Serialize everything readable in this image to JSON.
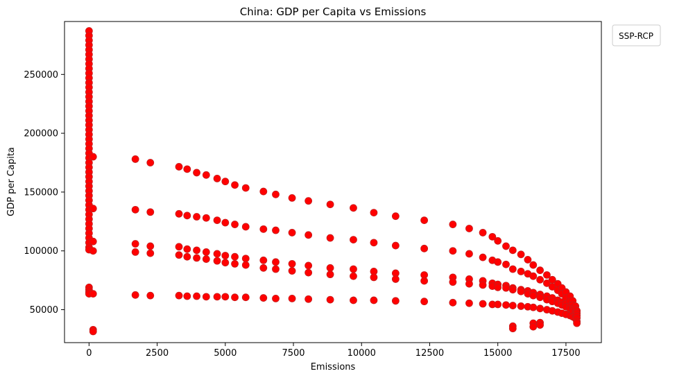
{
  "chart_data": {
    "type": "scatter",
    "title": "China: GDP per Capita vs Emissions",
    "xlabel": "Emissions",
    "ylabel": "GDP per Capita",
    "xlim": [
      -900,
      18800
    ],
    "ylim": [
      22000,
      295000
    ],
    "xticks": [
      0,
      2500,
      5000,
      7500,
      10000,
      12500,
      15000,
      17500
    ],
    "yticks": [
      50000,
      100000,
      150000,
      200000,
      250000
    ],
    "legend": {
      "title": "SSP-RCP",
      "placement": "outside-top-right"
    },
    "grid": false,
    "marker_color": "#ff0000",
    "marker_edge_color": "#c41e1e",
    "series": [
      {
        "points": [
          [
            0,
            287000
          ],
          [
            0,
            283000
          ],
          [
            0,
            279000
          ],
          [
            0,
            275000
          ],
          [
            0,
            271000
          ],
          [
            0,
            267000
          ],
          [
            0,
            263000
          ],
          [
            0,
            259000
          ],
          [
            0,
            255000
          ],
          [
            0,
            251000
          ],
          [
            0,
            247000
          ],
          [
            0,
            243000
          ],
          [
            0,
            239000
          ],
          [
            0,
            235000
          ],
          [
            0,
            231000
          ],
          [
            0,
            227000
          ],
          [
            0,
            223000
          ],
          [
            0,
            219000
          ],
          [
            0,
            215000
          ],
          [
            0,
            211000
          ],
          [
            0,
            207000
          ],
          [
            0,
            203000
          ],
          [
            0,
            199000
          ],
          [
            0,
            195000
          ],
          [
            0,
            191000
          ],
          [
            0,
            187000
          ],
          [
            0,
            183000
          ],
          [
            0,
            179000
          ],
          [
            0,
            175000
          ],
          [
            0,
            171000
          ],
          [
            0,
            167000
          ],
          [
            0,
            163000
          ],
          [
            0,
            159000
          ],
          [
            0,
            155000
          ],
          [
            0,
            151000
          ],
          [
            0,
            147000
          ],
          [
            0,
            143000
          ],
          [
            0,
            139000
          ],
          [
            0,
            135000
          ],
          [
            0,
            131000
          ],
          [
            0,
            127000
          ],
          [
            0,
            123000
          ],
          [
            0,
            119000
          ],
          [
            0,
            115000
          ],
          [
            0,
            111000
          ],
          [
            0,
            107000
          ],
          [
            0,
            103000
          ],
          [
            0,
            101000
          ],
          [
            0,
            69000
          ],
          [
            0,
            67000
          ],
          [
            0,
            65000
          ],
          [
            0,
            63500
          ],
          [
            150,
            180000
          ],
          [
            150,
            136000
          ],
          [
            150,
            108000
          ],
          [
            150,
            100000
          ],
          [
            150,
            63500
          ],
          [
            150,
            33000
          ],
          [
            150,
            31500
          ],
          [
            1700,
            178000
          ],
          [
            1700,
            135000
          ],
          [
            1700,
            106000
          ],
          [
            1700,
            99000
          ],
          [
            1700,
            62500
          ],
          [
            2250,
            175000
          ],
          [
            2250,
            133000
          ],
          [
            2250,
            104000
          ],
          [
            2250,
            98000
          ],
          [
            2250,
            62000
          ],
          [
            3300,
            171500
          ],
          [
            3300,
            131500
          ],
          [
            3300,
            103500
          ],
          [
            3300,
            96500
          ],
          [
            3300,
            62000
          ],
          [
            3600,
            169500
          ],
          [
            3600,
            130000
          ],
          [
            3600,
            101500
          ],
          [
            3600,
            95000
          ],
          [
            3600,
            61500
          ],
          [
            3950,
            166500
          ],
          [
            3950,
            129000
          ],
          [
            3950,
            100500
          ],
          [
            3950,
            94000
          ],
          [
            3950,
            61500
          ],
          [
            4300,
            164500
          ],
          [
            4300,
            128000
          ],
          [
            4300,
            99000
          ],
          [
            4300,
            93000
          ],
          [
            4300,
            61000
          ],
          [
            4700,
            161500
          ],
          [
            4700,
            126000
          ],
          [
            4700,
            97500
          ],
          [
            4700,
            91500
          ],
          [
            4700,
            61000
          ],
          [
            5000,
            159000
          ],
          [
            5000,
            124000
          ],
          [
            5000,
            96000
          ],
          [
            5000,
            90000
          ],
          [
            5000,
            61000
          ],
          [
            5350,
            156000
          ],
          [
            5350,
            122500
          ],
          [
            5350,
            95000
          ],
          [
            5350,
            89000
          ],
          [
            5350,
            60500
          ],
          [
            5750,
            153500
          ],
          [
            5750,
            120500
          ],
          [
            5750,
            93500
          ],
          [
            5750,
            88000
          ],
          [
            5750,
            60500
          ],
          [
            6400,
            150500
          ],
          [
            6400,
            118500
          ],
          [
            6400,
            92000
          ],
          [
            6400,
            85500
          ],
          [
            6400,
            60000
          ],
          [
            6850,
            148000
          ],
          [
            6850,
            117500
          ],
          [
            6850,
            90500
          ],
          [
            6850,
            84500
          ],
          [
            6850,
            59500
          ],
          [
            7450,
            145000
          ],
          [
            7450,
            115500
          ],
          [
            7450,
            89000
          ],
          [
            7450,
            83000
          ],
          [
            7450,
            59500
          ],
          [
            8050,
            142500
          ],
          [
            8050,
            113500
          ],
          [
            8050,
            87500
          ],
          [
            8050,
            81500
          ],
          [
            8050,
            59000
          ],
          [
            8850,
            139500
          ],
          [
            8850,
            111000
          ],
          [
            8850,
            85500
          ],
          [
            8850,
            80000
          ],
          [
            8850,
            58500
          ],
          [
            9700,
            136500
          ],
          [
            9700,
            109500
          ],
          [
            9700,
            84500
          ],
          [
            9700,
            78500
          ],
          [
            9700,
            58000
          ],
          [
            10450,
            132500
          ],
          [
            10450,
            107000
          ],
          [
            10450,
            82500
          ],
          [
            10450,
            77500
          ],
          [
            10450,
            58000
          ],
          [
            11250,
            129500
          ],
          [
            11250,
            104500
          ],
          [
            11250,
            81000
          ],
          [
            11250,
            76000
          ],
          [
            11250,
            57500
          ],
          [
            12300,
            126000
          ],
          [
            12300,
            102000
          ],
          [
            12300,
            79500
          ],
          [
            12300,
            74500
          ],
          [
            12300,
            57000
          ],
          [
            13350,
            122500
          ],
          [
            13350,
            100000
          ],
          [
            13350,
            77500
          ],
          [
            13350,
            73500
          ],
          [
            13350,
            56000
          ],
          [
            13950,
            119000
          ],
          [
            13950,
            97500
          ],
          [
            13950,
            76000
          ],
          [
            13950,
            72000
          ],
          [
            13950,
            55500
          ],
          [
            14450,
            115500
          ],
          [
            14450,
            94500
          ],
          [
            14450,
            74500
          ],
          [
            14450,
            71000
          ],
          [
            14450,
            55000
          ],
          [
            14800,
            112000
          ],
          [
            14800,
            92000
          ],
          [
            14800,
            72500
          ],
          [
            14800,
            70000
          ],
          [
            14800,
            54500
          ],
          [
            15000,
            108500
          ],
          [
            15000,
            90500
          ],
          [
            15000,
            71500
          ],
          [
            15000,
            69000
          ],
          [
            15000,
            54500
          ],
          [
            15300,
            104000
          ],
          [
            15300,
            88500
          ],
          [
            15300,
            70500
          ],
          [
            15300,
            68500
          ],
          [
            15300,
            54000
          ],
          [
            15550,
            100500
          ],
          [
            15550,
            84500
          ],
          [
            15550,
            68500
          ],
          [
            15550,
            67000
          ],
          [
            15550,
            53500
          ],
          [
            15550,
            36000
          ],
          [
            15550,
            34000
          ],
          [
            15850,
            97000
          ],
          [
            15850,
            82500
          ],
          [
            15850,
            67000
          ],
          [
            15850,
            65500
          ],
          [
            15850,
            53000
          ],
          [
            16100,
            92500
          ],
          [
            16100,
            80500
          ],
          [
            16100,
            66000
          ],
          [
            16100,
            63500
          ],
          [
            16100,
            52500
          ],
          [
            16300,
            88000
          ],
          [
            16300,
            78500
          ],
          [
            16300,
            64500
          ],
          [
            16300,
            62000
          ],
          [
            16300,
            52000
          ],
          [
            16300,
            38500
          ],
          [
            16300,
            35500
          ],
          [
            16550,
            83500
          ],
          [
            16550,
            75500
          ],
          [
            16550,
            63000
          ],
          [
            16550,
            60500
          ],
          [
            16550,
            51000
          ],
          [
            16550,
            39000
          ],
          [
            16550,
            37000
          ],
          [
            16800,
            79500
          ],
          [
            16800,
            72500
          ],
          [
            16800,
            61500
          ],
          [
            16800,
            58500
          ],
          [
            16800,
            50000
          ],
          [
            17000,
            75500
          ],
          [
            17000,
            69500
          ],
          [
            17000,
            60000
          ],
          [
            17000,
            57000
          ],
          [
            17000,
            49000
          ],
          [
            17200,
            72000
          ],
          [
            17200,
            66500
          ],
          [
            17200,
            58000
          ],
          [
            17200,
            55500
          ],
          [
            17200,
            48000
          ],
          [
            17350,
            68500
          ],
          [
            17350,
            63500
          ],
          [
            17350,
            56500
          ],
          [
            17350,
            54000
          ],
          [
            17350,
            47000
          ],
          [
            17500,
            65000
          ],
          [
            17500,
            60000
          ],
          [
            17500,
            55000
          ],
          [
            17500,
            52500
          ],
          [
            17500,
            46000
          ],
          [
            17650,
            61500
          ],
          [
            17650,
            57000
          ],
          [
            17650,
            53000
          ],
          [
            17650,
            51000
          ],
          [
            17650,
            45000
          ],
          [
            17750,
            57500
          ],
          [
            17750,
            54000
          ],
          [
            17750,
            51000
          ],
          [
            17750,
            49000
          ],
          [
            17750,
            44000
          ],
          [
            17850,
            53000
          ],
          [
            17850,
            50500
          ],
          [
            17850,
            48000
          ],
          [
            17850,
            46000
          ],
          [
            17850,
            42500
          ],
          [
            17900,
            49000
          ],
          [
            17900,
            47000
          ],
          [
            17900,
            45000
          ],
          [
            17900,
            43000
          ],
          [
            17900,
            40000
          ],
          [
            17900,
            38500
          ]
        ]
      }
    ]
  }
}
